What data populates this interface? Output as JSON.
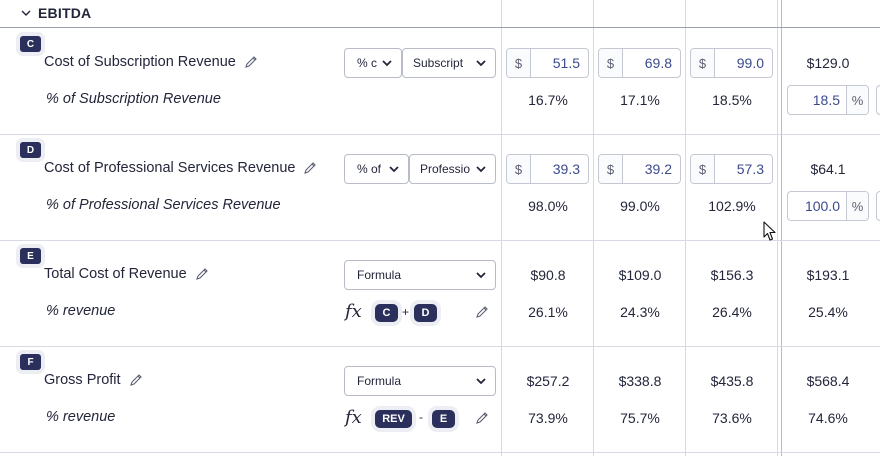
{
  "section": {
    "title": "EBITDA"
  },
  "rows": [
    {
      "badge": "C",
      "label": "Cost of Subscription Revenue",
      "sub_label": "% of Subscription Revenue",
      "select1": "% c",
      "select2": "Subscript",
      "currency": "$",
      "inputs": [
        "51.5",
        "69.8",
        "99.0"
      ],
      "col4_value": "$129.0",
      "percents": [
        "16.7%",
        "17.1%",
        "18.5%"
      ],
      "pct_input": "18.5",
      "pct_unit": "%"
    },
    {
      "badge": "D",
      "label": "Cost of Professional Services Revenue",
      "sub_label": "% of Professional Services Revenue",
      "select1": "% of",
      "select2": "Professio",
      "currency": "$",
      "inputs": [
        "39.3",
        "39.2",
        "57.3"
      ],
      "col4_value": "$64.1",
      "percents": [
        "98.0%",
        "99.0%",
        "102.9%"
      ],
      "pct_input": "100.0",
      "pct_unit": "%"
    },
    {
      "badge": "E",
      "label": "Total Cost of Revenue",
      "sub_label": "% revenue",
      "select1": "Formula",
      "formula": {
        "fx": "fx",
        "left": "C",
        "op": "+",
        "right": "D"
      },
      "values": [
        "$90.8",
        "$109.0",
        "$156.3",
        "$193.1"
      ],
      "percents": [
        "26.1%",
        "24.3%",
        "26.4%",
        "25.4%"
      ]
    },
    {
      "badge": "F",
      "label": "Gross Profit",
      "sub_label": "% revenue",
      "select1": "Formula",
      "formula": {
        "fx": "fx",
        "left": "REV",
        "op": "-",
        "right": "E"
      },
      "values": [
        "$257.2",
        "$338.8",
        "$435.8",
        "$568.4"
      ],
      "percents": [
        "73.9%",
        "75.7%",
        "73.6%",
        "74.6%"
      ]
    }
  ],
  "colors": {
    "badge": "#2a2f5b",
    "input_value": "#3c4a8e",
    "grid": "#d7dae2",
    "current_period_divider": "#9cc3ea"
  },
  "icons": [
    "chevron-down-icon",
    "pencil-icon",
    "caret-down-icon",
    "mouse-cursor-icon"
  ]
}
